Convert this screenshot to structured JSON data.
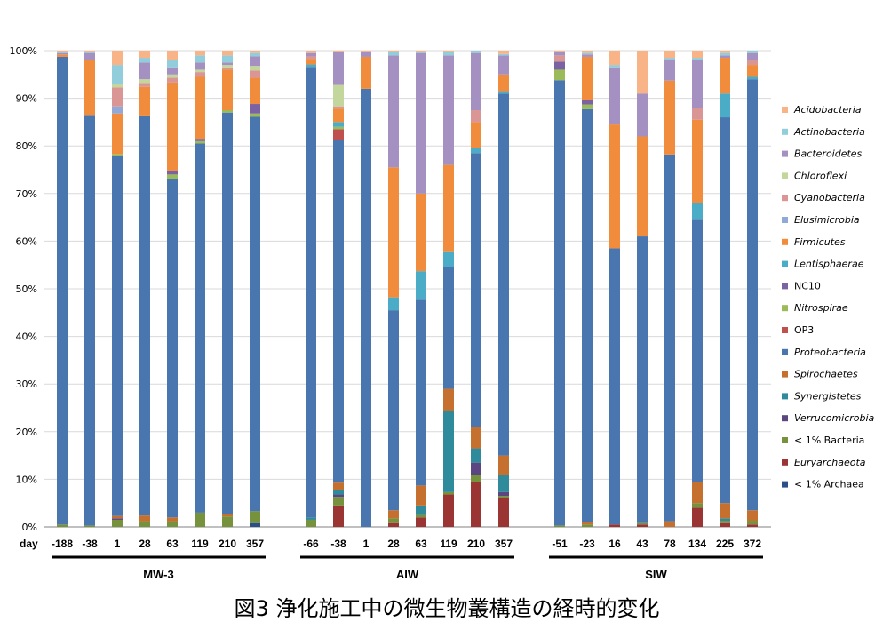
{
  "caption": "図3 浄化施工中の微生物叢構造の経時的変化",
  "chart_data": {
    "type": "bar",
    "stacked": true,
    "normalized": true,
    "title": "図3 浄化施工中の微生物叢構造の経時的変化",
    "xlabel": "day",
    "ylabel": "",
    "ylim": [
      0,
      100
    ],
    "yticks": [
      "0%",
      "10%",
      "20%",
      "30%",
      "40%",
      "50%",
      "60%",
      "70%",
      "80%",
      "90%",
      "100%"
    ],
    "legend_position": "right",
    "taxa": [
      {
        "name": "< 1% Archaea",
        "color": "#2c4f87",
        "italic": false
      },
      {
        "name": "Euryarchaeota",
        "color": "#9a3534",
        "italic": true
      },
      {
        "name": "< 1% Bacteria",
        "color": "#76923c",
        "italic": false
      },
      {
        "name": "Verrucomicrobia",
        "color": "#5b4682",
        "italic": true
      },
      {
        "name": "Synergistetes",
        "color": "#2f8a9c",
        "italic": true
      },
      {
        "name": "Spirochaetes",
        "color": "#c6702f",
        "italic": true
      },
      {
        "name": "Proteobacteria",
        "color": "#4a76b0",
        "italic": true
      },
      {
        "name": "OP3",
        "color": "#c0504d",
        "italic": false
      },
      {
        "name": "Nitrospirae",
        "color": "#9bbb59",
        "italic": true
      },
      {
        "name": "NC10",
        "color": "#7b62a3",
        "italic": false
      },
      {
        "name": "Lentisphaerae",
        "color": "#4aacc6",
        "italic": true
      },
      {
        "name": "Firmicutes",
        "color": "#f08c3c",
        "italic": true
      },
      {
        "name": "Elusimicrobia",
        "color": "#91a9d6",
        "italic": true
      },
      {
        "name": "Cyanobacteria",
        "color": "#d99694",
        "italic": true
      },
      {
        "name": "Chloroflexi",
        "color": "#c3d69b",
        "italic": true
      },
      {
        "name": "Bacteroidetes",
        "color": "#a590c2",
        "italic": true
      },
      {
        "name": "Actinobacteria",
        "color": "#92cddc",
        "italic": true
      },
      {
        "name": "Acidobacteria",
        "color": "#f8b487",
        "italic": true
      }
    ],
    "groups": [
      {
        "name": "MW-3",
        "samples": [
          {
            "day": "-188",
            "values": {
              "< 1% Bacteria": 0.5,
              "Proteobacteria": 98.2,
              "Firmicutes": 0.5,
              "Bacteroidetes": 0.3,
              "Actinobacteria": 0.2,
              "Acidobacteria": 0.3
            }
          },
          {
            "day": "-38",
            "values": {
              "< 1% Bacteria": 0.3,
              "Proteobacteria": 86.2,
              "Firmicutes": 11.5,
              "Bacteroidetes": 1.5,
              "Actinobacteria": 0.3,
              "Acidobacteria": 0.2
            }
          },
          {
            "day": "1",
            "values": {
              "< 1% Bacteria": 1.5,
              "Proteobacteria": 75.5,
              "Nitrospirae": 0.5,
              "Verrucomicrobia": 0.3,
              "Spirochaetes": 0.5,
              "Firmicutes": 8.5,
              "Elusimicrobia": 1.5,
              "Cyanobacteria": 4.0,
              "Chloroflexi": 0.7,
              "Actinobacteria": 4.0,
              "Acidobacteria": 3.0
            }
          },
          {
            "day": "28",
            "values": {
              "< 1% Bacteria": 1.2,
              "Spirochaetes": 1.2,
              "Proteobacteria": 84.0,
              "Firmicutes": 6.0,
              "Cyanobacteria": 0.8,
              "Chloroflexi": 0.8,
              "Bacteroidetes": 3.5,
              "Actinobacteria": 1.0,
              "Acidobacteria": 1.5
            }
          },
          {
            "day": "63",
            "values": {
              "< 1% Bacteria": 1.2,
              "Spirochaetes": 0.8,
              "Proteobacteria": 71.0,
              "Nitrospirae": 1.0,
              "NC10": 0.8,
              "Firmicutes": 18.5,
              "Cyanobacteria": 1.0,
              "Chloroflexi": 0.7,
              "Bacteroidetes": 1.5,
              "Actinobacteria": 1.5,
              "Acidobacteria": 2.0
            }
          },
          {
            "day": "119",
            "values": {
              "< 1% Bacteria": 3.0,
              "Proteobacteria": 77.5,
              "Nitrospirae": 0.5,
              "NC10": 0.5,
              "Firmicutes": 13.0,
              "Cyanobacteria": 1.0,
              "Chloroflexi": 0.5,
              "Bacteroidetes": 1.5,
              "Actinobacteria": 1.5,
              "Acidobacteria": 1.0
            }
          },
          {
            "day": "210",
            "values": {
              "< 1% Bacteria": 2.2,
              "Proteobacteria": 84.3,
              "Nitrospirae": 0.5,
              "Spirochaetes": 0.5,
              "Firmicutes": 8.5,
              "Cyanobacteria": 0.5,
              "Chloroflexi": 0.5,
              "Bacteroidetes": 0.5,
              "Actinobacteria": 1.5,
              "Acidobacteria": 1.0
            }
          },
          {
            "day": "357",
            "values": {
              "< 1% Archaea": 0.8,
              "< 1% Bacteria": 2.5,
              "Proteobacteria": 82.8,
              "Nitrospirae": 0.7,
              "NC10": 2.0,
              "Firmicutes": 5.5,
              "Cyanobacteria": 1.5,
              "Chloroflexi": 1.0,
              "Bacteroidetes": 2.0,
              "Actinobacteria": 0.7,
              "Acidobacteria": 0.5
            }
          }
        ]
      },
      {
        "name": "AIW",
        "samples": [
          {
            "day": "-66",
            "values": {
              "< 1% Bacteria": 1.5,
              "Synergistetes": 0.5,
              "Proteobacteria": 94.6,
              "Firmicutes": 1.2,
              "Lentisphaerae": 0.5,
              "Cyanobacteria": 0.5,
              "Bacteroidetes": 0.7,
              "Acidobacteria": 0.5
            }
          },
          {
            "day": "-38",
            "values": {
              "Euryarchaeota": 4.5,
              "< 1% Bacteria": 1.8,
              "Synergistetes": 1.0,
              "Verrucomicrobia": 0.5,
              "Spirochaetes": 1.5,
              "Proteobacteria": 72.0,
              "OP3": 2.2,
              "Nitrospirae": 0.5,
              "Lentisphaerae": 1.0,
              "Firmicutes": 2.8,
              "Cyanobacteria": 0.5,
              "Chloroflexi": 4.5,
              "Bacteroidetes": 7.0,
              "Acidobacteria": 0.2
            }
          },
          {
            "day": "1",
            "values": {
              "Proteobacteria": 92.0,
              "Firmicutes": 6.7,
              "Bacteroidetes": 1.0,
              "Acidobacteria": 0.3
            }
          },
          {
            "day": "28",
            "values": {
              "Euryarchaeota": 0.8,
              "< 1% Bacteria": 1.0,
              "Spirochaetes": 1.7,
              "Proteobacteria": 42.0,
              "Lentisphaerae": 2.7,
              "Firmicutes": 27.3,
              "Bacteroidetes": 23.5,
              "Actinobacteria": 0.7,
              "Acidobacteria": 0.3
            }
          },
          {
            "day": "63",
            "values": {
              "Euryarchaeota": 2.0,
              "< 1% Bacteria": 0.5,
              "Synergistetes": 2.0,
              "Spirochaetes": 4.2,
              "Proteobacteria": 39.0,
              "Lentisphaerae": 6.0,
              "Firmicutes": 16.3,
              "Bacteroidetes": 29.5,
              "Actinobacteria": 0.3,
              "Acidobacteria": 0.2
            }
          },
          {
            "day": "119",
            "values": {
              "Euryarchaeota": 6.8,
              "< 1% Bacteria": 0.5,
              "Synergistetes": 17.0,
              "Spirochaetes": 4.7,
              "Proteobacteria": 25.5,
              "Lentisphaerae": 3.2,
              "Firmicutes": 18.3,
              "Bacteroidetes": 23.0,
              "Actinobacteria": 0.7,
              "Acidobacteria": 0.3
            }
          },
          {
            "day": "210",
            "values": {
              "Euryarchaeota": 9.5,
              "< 1% Bacteria": 1.5,
              "Verrucomicrobia": 2.5,
              "Synergistetes": 3.0,
              "Spirochaetes": 4.5,
              "Proteobacteria": 57.5,
              "Lentisphaerae": 1.0,
              "Firmicutes": 5.5,
              "Cyanobacteria": 2.5,
              "Bacteroidetes": 12.0,
              "Actinobacteria": 0.5
            }
          },
          {
            "day": "357",
            "values": {
              "Euryarchaeota": 6.0,
              "< 1% Bacteria": 0.5,
              "Verrucomicrobia": 0.8,
              "Synergistetes": 3.7,
              "Spirochaetes": 4.0,
              "Proteobacteria": 76.0,
              "Lentisphaerae": 0.5,
              "Firmicutes": 3.5,
              "Bacteroidetes": 4.0,
              "Actinobacteria": 0.3,
              "Acidobacteria": 0.7
            }
          }
        ]
      },
      {
        "name": "SIW",
        "samples": [
          {
            "day": "-51",
            "values": {
              "< 1% Bacteria": 0.3,
              "Proteobacteria": 93.5,
              "Nitrospirae": 2.2,
              "NC10": 1.7,
              "Cyanobacteria": 1.3,
              "Bacteroidetes": 0.7,
              "Acidobacteria": 0.3
            }
          },
          {
            "day": "-23",
            "values": {
              "< 1% Bacteria": 0.5,
              "Spirochaetes": 0.5,
              "Proteobacteria": 86.7,
              "Nitrospirae": 1.0,
              "NC10": 1.0,
              "Firmicutes": 9.0,
              "Bacteroidetes": 0.5,
              "Actinobacteria": 0.3,
              "Acidobacteria": 0.5
            }
          },
          {
            "day": "16",
            "values": {
              "Euryarchaeota": 0.5,
              "Proteobacteria": 58.0,
              "Firmicutes": 26.0,
              "Bacteroidetes": 12.0,
              "Actinobacteria": 0.5,
              "Acidobacteria": 3.0
            }
          },
          {
            "day": "43",
            "values": {
              "Euryarchaeota": 0.5,
              "< 1% Bacteria": 0.3,
              "Proteobacteria": 60.2,
              "Firmicutes": 21.0,
              "Bacteroidetes": 9.0,
              "Acidobacteria": 9.0
            }
          },
          {
            "day": "78",
            "values": {
              "Spirochaetes": 1.2,
              "Proteobacteria": 77.0,
              "Firmicutes": 15.5,
              "Bacteroidetes": 4.5,
              "Actinobacteria": 0.3,
              "Acidobacteria": 1.5
            }
          },
          {
            "day": "134",
            "values": {
              "Euryarchaeota": 4.0,
              "< 1% Bacteria": 1.0,
              "Spirochaetes": 4.5,
              "Proteobacteria": 55.0,
              "Lentisphaerae": 3.5,
              "Firmicutes": 17.5,
              "Cyanobacteria": 2.5,
              "Bacteroidetes": 10.0,
              "Actinobacteria": 0.5,
              "Acidobacteria": 1.5
            }
          },
          {
            "day": "225",
            "values": {
              "Euryarchaeota": 0.8,
              "< 1% Bacteria": 0.5,
              "Synergistetes": 0.5,
              "Spirochaetes": 3.2,
              "Proteobacteria": 81.0,
              "Lentisphaerae": 5.0,
              "Firmicutes": 7.5,
              "Bacteroidetes": 0.5,
              "Actinobacteria": 0.5,
              "Acidobacteria": 0.5
            }
          },
          {
            "day": "372",
            "values": {
              "Euryarchaeota": 0.5,
              "< 1% Bacteria": 0.8,
              "Spirochaetes": 2.2,
              "Proteobacteria": 90.5,
              "Lentisphaerae": 0.5,
              "Firmicutes": 2.5,
              "Cyanobacteria": 1.0,
              "Bacteroidetes": 1.5,
              "Actinobacteria": 0.5
            }
          }
        ]
      }
    ]
  }
}
